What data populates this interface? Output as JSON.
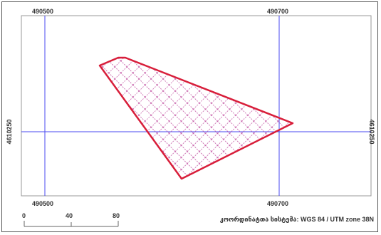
{
  "grid_labels": {
    "x_top": [
      "490500",
      "490700"
    ],
    "x_bottom": [
      "490500",
      "490700"
    ],
    "y_left": "4610250",
    "y_right": "4610250"
  },
  "scale_bar": {
    "labels": [
      "0",
      "40",
      "80"
    ]
  },
  "crs_label": "კოორდინატთა სისტემა: WGS 84 / UTM zone 38N",
  "colors": {
    "grid_line": "#4a4af0",
    "parcel_outline": "#d81e3a",
    "hatch": "#c04ea0",
    "frame": "#999999"
  }
}
